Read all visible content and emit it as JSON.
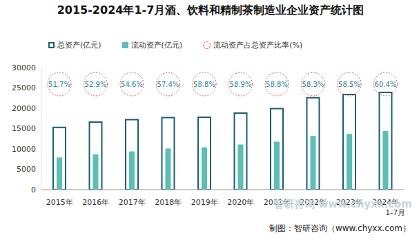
{
  "chart_data": {
    "type": "bar",
    "title": "2015-2024年1-7月酒、饮料和精制茶制造业企业资产统计图",
    "categories": [
      "2015年",
      "2016年",
      "2017年",
      "2018年",
      "2019年",
      "2020年",
      "2021年",
      "2022年",
      "2023年",
      "2024年1-7月"
    ],
    "series": [
      {
        "name": "总资产(亿元)",
        "color": "#1a5f70",
        "type": "bar",
        "values": [
          15300,
          16600,
          17200,
          17700,
          17800,
          18800,
          19900,
          22600,
          23400,
          23900
        ]
      },
      {
        "name": "流动资产(亿元)",
        "color": "#5bbfb5",
        "type": "bar",
        "values": [
          7900,
          8700,
          9400,
          10100,
          10400,
          11100,
          11800,
          13200,
          13700,
          14400
        ]
      },
      {
        "name": "流动资产占总资产比率(%)",
        "color": "#d9534f",
        "type": "scatter",
        "marker": "circle",
        "line_style": "dashed",
        "data_labels": true,
        "values": [
          51.7,
          52.9,
          54.6,
          57.4,
          58.8,
          58.9,
          58.8,
          58.3,
          58.5,
          60.4
        ],
        "value_labels": [
          "51.7%",
          "52.9%",
          "54.6%",
          "57.4%",
          "58.8%",
          "58.9%",
          "58.8%",
          "58.3%",
          "58.5%",
          "60.4%"
        ]
      }
    ],
    "ylim": [
      0,
      30000
    ],
    "yticks": [
      0,
      5000,
      10000,
      15000,
      20000,
      25000,
      30000
    ],
    "grid": false,
    "legend": "top",
    "annotations": [
      "制图：智研咨询（www.chyxx.com）",
      "智研咨询 www.chyxx.com"
    ]
  }
}
